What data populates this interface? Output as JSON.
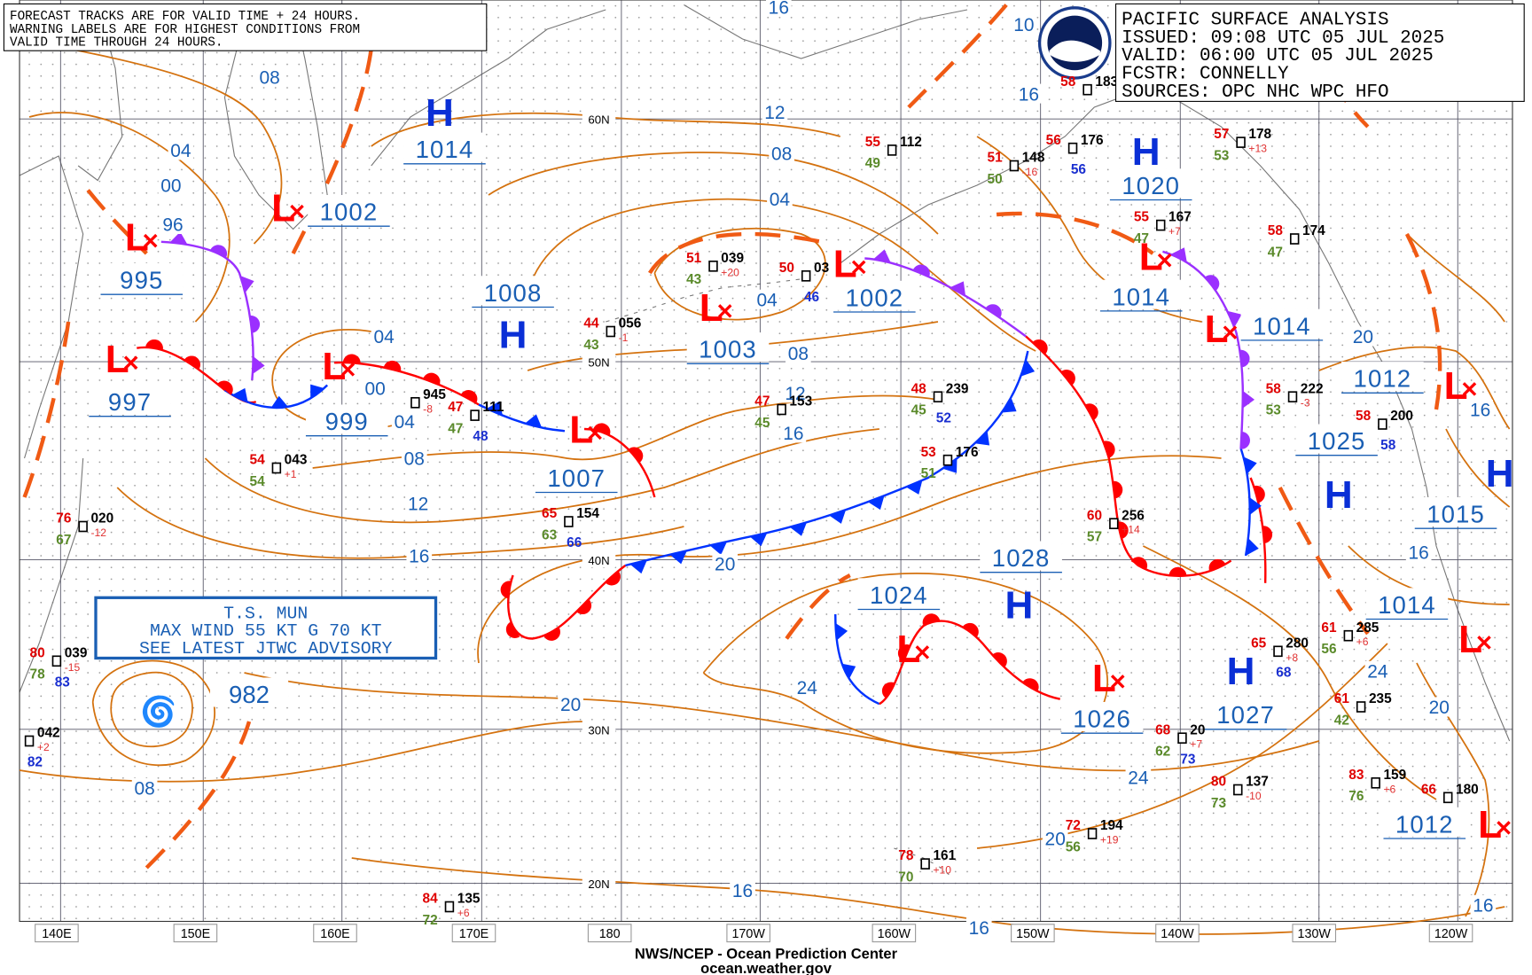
{
  "header": {
    "lines": [
      "PACIFIC SURFACE ANALYSIS",
      "ISSUED:  09:08 UTC 05 JUL 2025",
      "VALID:   06:00 UTC 05 JUL 2025",
      "FCSTR:   CONNELLY",
      "SOURCES: OPC NHC WPC HFO"
    ]
  },
  "warning": {
    "lines": [
      "FORECAST TRACKS ARE FOR VALID TIME + 24 HOURS.",
      "WARNING LABELS ARE FOR HIGHEST CONDITIONS FROM",
      "VALID TIME THROUGH 24 HOURS."
    ]
  },
  "storm_box": {
    "lines": [
      "T.S. MUN",
      "MAX WIND 55 KT G 70 KT",
      "SEE LATEST JTWC ADVISORY"
    ]
  },
  "storm_pressure": "982",
  "longitudes": [
    "140E",
    "150E",
    "160E",
    "170E",
    "180",
    "170W",
    "160W",
    "150W",
    "140W",
    "130W",
    "120W"
  ],
  "latitudes": [
    "60N",
    "50N",
    "40N",
    "30N",
    "20N"
  ],
  "centers": [
    {
      "symbol": "H",
      "pressure": "1014"
    },
    {
      "symbol": "L",
      "pressure": "1002"
    },
    {
      "symbol": "L",
      "pressure": "995"
    },
    {
      "symbol": "L",
      "pressure": "997"
    },
    {
      "symbol": "L",
      "pressure": "999"
    },
    {
      "symbol": "H",
      "pressure": "1008"
    },
    {
      "symbol": "L",
      "pressure": "1003"
    },
    {
      "symbol": "L",
      "pressure": "1007"
    },
    {
      "symbol": "L",
      "pressure": "1002"
    },
    {
      "symbol": "H",
      "pressure": "1020"
    },
    {
      "symbol": "L",
      "pressure": "1014"
    },
    {
      "symbol": "L",
      "pressure": "1014"
    },
    {
      "symbol": "H",
      "pressure": "1025"
    },
    {
      "symbol": "H",
      "pressure": "1015"
    },
    {
      "symbol": "H",
      "pressure": "1028"
    },
    {
      "symbol": "L",
      "pressure": "1024"
    },
    {
      "symbol": "L",
      "pressure": "1026"
    },
    {
      "symbol": "H",
      "pressure": "1027"
    },
    {
      "symbol": "L",
      "pressure": "1014"
    },
    {
      "symbol": "L",
      "pressure": "1012"
    },
    {
      "symbol": "L",
      "pressure": "1012"
    }
  ],
  "isobar_labels": [
    "08",
    "04",
    "00",
    "96",
    "04",
    "00",
    "04",
    "08",
    "12",
    "16",
    "12",
    "08",
    "04",
    "04",
    "08",
    "12",
    "16",
    "20",
    "20",
    "08",
    "24",
    "24",
    "20",
    "16",
    "16",
    "16",
    "16",
    "20",
    "16",
    "24",
    "20",
    "16",
    "16",
    "10"
  ],
  "stations": [
    {
      "t": "51",
      "p": "039",
      "tend": "+20",
      "td": "43"
    },
    {
      "t": "44",
      "p": "056",
      "tend": "-1",
      "td": "43"
    },
    {
      "t": "50",
      "p": "03",
      "v": "46"
    },
    {
      "t": "55",
      "p": "112",
      "td": "49"
    },
    {
      "t": "56",
      "p": "176",
      "v": "56"
    },
    {
      "t": "51",
      "p": "148",
      "tend": "-16",
      "td": "50"
    },
    {
      "t": "57",
      "p": "178",
      "tend": "+13",
      "td": "53"
    },
    {
      "t": "55",
      "p": "167",
      "tend": "+7",
      "td": "47"
    },
    {
      "t": "48",
      "p": "239",
      "td": "45",
      "v": "52"
    },
    {
      "t": "53",
      "p": "176",
      "td": "51"
    },
    {
      "t": "60",
      "p": "256",
      "tend": "+14",
      "td": "57"
    },
    {
      "t": "58",
      "p": "222",
      "tend": "-3",
      "td": "53"
    },
    {
      "t": "65",
      "p": "154",
      "td": "63",
      "v": "66"
    },
    {
      "t": "47",
      "p": "111",
      "td": "47",
      "v": "48"
    },
    {
      "p": "945",
      "tend": "-8"
    },
    {
      "t": "54",
      "p": "043",
      "tend": "+1",
      "td": "54"
    },
    {
      "t": "76",
      "p": "020",
      "tend": "-12",
      "td": "67"
    },
    {
      "t": "80",
      "p": "039",
      "tend": "-15",
      "td": "78",
      "v": "83"
    },
    {
      "p": "042",
      "tend": "+2",
      "v": "82"
    },
    {
      "t": "65",
      "p": "280",
      "tend": "+8",
      "v": "68"
    },
    {
      "t": "61",
      "p": "285",
      "tend": "+6",
      "td": "56"
    },
    {
      "t": "61",
      "p": "235",
      "td": "42"
    },
    {
      "t": "68",
      "p": "20",
      "tend": "+7",
      "td": "62",
      "v": "73"
    },
    {
      "t": "80",
      "p": "137",
      "tend": "-10",
      "td": "73"
    },
    {
      "t": "83",
      "p": "159",
      "tend": "+6",
      "td": "76"
    },
    {
      "t": "72",
      "p": "194",
      "tend": "+19",
      "td": "56"
    },
    {
      "t": "78",
      "p": "161",
      "tend": "+10",
      "td": "70"
    },
    {
      "t": "84",
      "p": "135",
      "tend": "+6",
      "td": "72"
    },
    {
      "t": "66",
      "p": "180"
    },
    {
      "t": "58",
      "p": "183"
    },
    {
      "t": "58",
      "p": "174",
      "td": "47"
    },
    {
      "t": "58",
      "p": "200",
      "v": "58"
    },
    {
      "t": "47",
      "p": "153",
      "td": "45"
    }
  ],
  "footer": {
    "agency": "NWS/NCEP - Ocean Prediction Center",
    "site": "ocean.weather.gov"
  }
}
